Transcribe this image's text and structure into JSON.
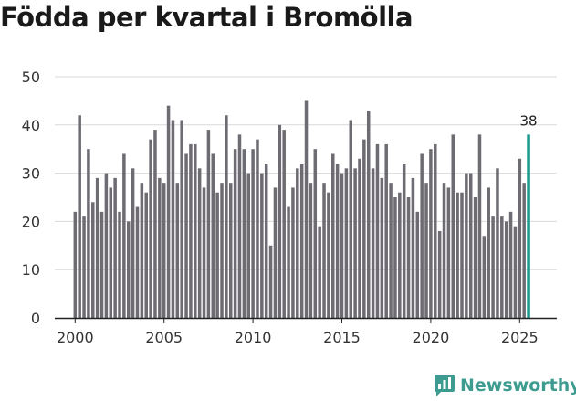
{
  "chart_data": {
    "type": "bar",
    "title": "Födda per kvartal i Bromölla",
    "xlabel": "",
    "ylabel": "",
    "ylim": [
      0,
      50
    ],
    "yticks": [
      0,
      10,
      20,
      30,
      40,
      50
    ],
    "xticks": [
      2000,
      2005,
      2010,
      2015,
      2020,
      2025
    ],
    "start_year": 2000,
    "bar_color": "#6e6c72",
    "highlight_color": "#1a9b8f",
    "last_label": "38",
    "values": [
      22,
      42,
      21,
      35,
      24,
      29,
      22,
      30,
      27,
      29,
      22,
      34,
      20,
      31,
      23,
      28,
      26,
      37,
      39,
      29,
      28,
      44,
      41,
      28,
      41,
      34,
      36,
      36,
      31,
      27,
      39,
      34,
      26,
      28,
      42,
      28,
      35,
      38,
      35,
      30,
      35,
      37,
      30,
      32,
      15,
      27,
      40,
      39,
      23,
      27,
      31,
      32,
      45,
      28,
      35,
      19,
      28,
      26,
      34,
      32,
      30,
      31,
      41,
      31,
      33,
      37,
      43,
      31,
      36,
      29,
      36,
      28,
      25,
      26,
      32,
      25,
      29,
      22,
      34,
      28,
      35,
      36,
      18,
      28,
      27,
      38,
      26,
      26,
      30,
      30,
      25,
      38,
      17,
      27,
      21,
      31,
      21,
      20,
      22,
      19,
      33,
      28,
      38
    ]
  },
  "brand": {
    "name": "Newsworthy",
    "icon": "bar-chart-bubble-icon",
    "color": "#3d9c8f"
  }
}
